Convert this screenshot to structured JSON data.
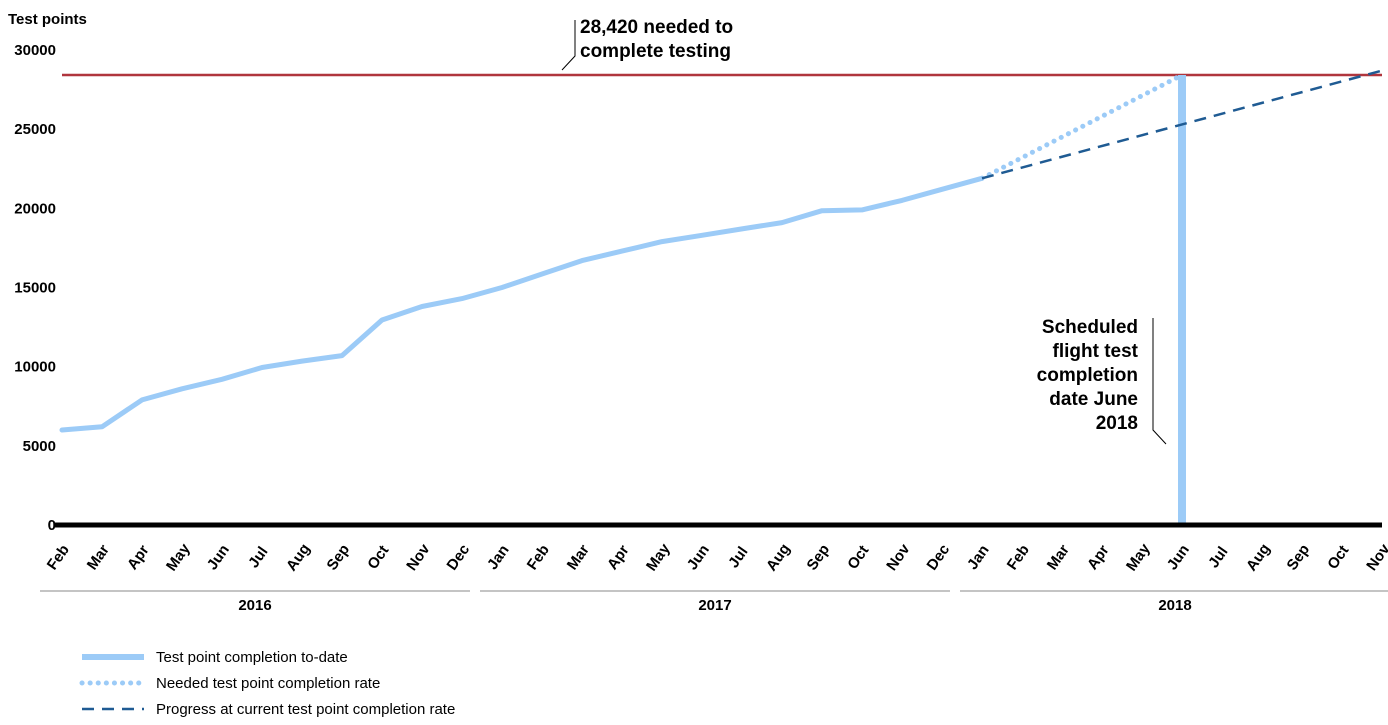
{
  "chart_data": {
    "type": "line",
    "ylabel": "Test points",
    "ylim": [
      0,
      30000
    ],
    "yticks": [
      "0",
      "5000",
      "10000",
      "15000",
      "20000",
      "25000",
      "30000"
    ],
    "ytick_values": [
      0,
      5000,
      10000,
      15000,
      20000,
      25000,
      30000
    ],
    "months": [
      "Feb",
      "Mar",
      "Apr",
      "May",
      "Jun",
      "Jul",
      "Aug",
      "Sep",
      "Oct",
      "Nov",
      "Dec",
      "Jan",
      "Feb",
      "Mar",
      "Apr",
      "May",
      "Jun",
      "Jul",
      "Aug",
      "Sep",
      "Oct",
      "Nov",
      "Dec",
      "Jan",
      "Feb",
      "Mar",
      "Apr",
      "May",
      "Jun",
      "Jul",
      "Aug",
      "Sep",
      "Oct",
      "Nov"
    ],
    "years": [
      {
        "label": "2016",
        "start": 0,
        "end": 10
      },
      {
        "label": "2017",
        "start": 11,
        "end": 22
      },
      {
        "label": "2018",
        "start": 23,
        "end": 33
      }
    ],
    "target": {
      "value": 28420,
      "annotation": [
        "28,420 needed to",
        "complete testing"
      ],
      "color": "#b0353d"
    },
    "milestone": {
      "month_index": 28,
      "annotation": [
        "Scheduled",
        "flight test",
        "completion",
        "date June",
        "2018"
      ],
      "color": "#9ccbf7"
    },
    "series": [
      {
        "name": "Test point completion to-date",
        "style": "solid",
        "color": "#9ccbf7",
        "points": [
          [
            0,
            6000
          ],
          [
            1,
            6200
          ],
          [
            2,
            7900
          ],
          [
            3,
            8600
          ],
          [
            4,
            9200
          ],
          [
            5,
            9950
          ],
          [
            6,
            10350
          ],
          [
            7,
            10700
          ],
          [
            8,
            12950
          ],
          [
            9,
            13800
          ],
          [
            10,
            14300
          ],
          [
            11,
            15000
          ],
          [
            12,
            15850
          ],
          [
            13,
            16700
          ],
          [
            14,
            17300
          ],
          [
            15,
            17900
          ],
          [
            16,
            18300
          ],
          [
            17,
            18700
          ],
          [
            18,
            19100
          ],
          [
            19,
            19850
          ],
          [
            20,
            19900
          ],
          [
            21,
            20500
          ],
          [
            22,
            21200
          ],
          [
            23,
            21900
          ]
        ]
      },
      {
        "name": "Needed test point completion rate",
        "style": "dotted",
        "color": "#9ccbf7",
        "points": [
          [
            23,
            21900
          ],
          [
            28,
            28420
          ]
        ]
      },
      {
        "name": "Progress at current test point completion rate",
        "style": "dashed",
        "color": "#1f5b93",
        "points": [
          [
            23,
            21900
          ],
          [
            33,
            28700
          ]
        ]
      }
    ],
    "grid": false,
    "legend_position": "bottom-left"
  }
}
